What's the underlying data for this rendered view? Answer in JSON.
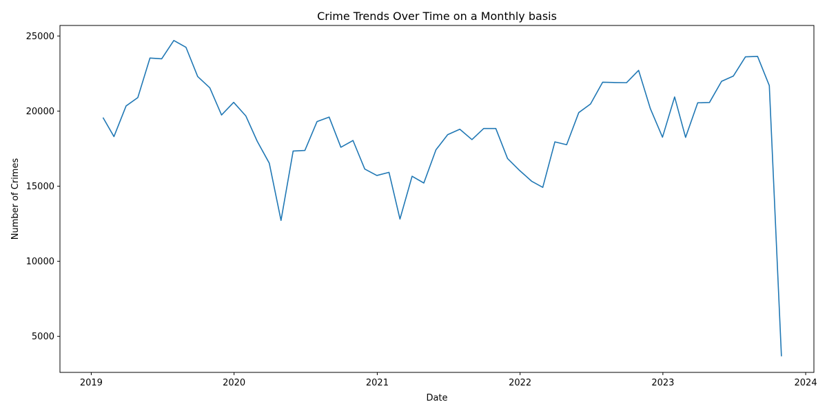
{
  "chart_data": {
    "type": "line",
    "title": "Crime Trends Over Time  on a Monthly basis",
    "xlabel": "Date",
    "ylabel": "Number of Crimes",
    "xlim": [
      "2018-10-13",
      "2024-01-22"
    ],
    "ylim": [
      2600,
      25700
    ],
    "x_ticks": [
      "2019",
      "2020",
      "2021",
      "2022",
      "2023",
      "2024"
    ],
    "y_ticks": [
      5000,
      10000,
      15000,
      20000,
      25000
    ],
    "grid": false,
    "legend": "none",
    "colors": {
      "line": "#1f77b4"
    },
    "series": [
      {
        "x": [
          "2019-01-31",
          "2019-02-28",
          "2019-03-31",
          "2019-04-30",
          "2019-05-31",
          "2019-06-30",
          "2019-07-31",
          "2019-08-31",
          "2019-09-30",
          "2019-10-31",
          "2019-11-30",
          "2019-12-31",
          "2020-01-31",
          "2020-02-29",
          "2020-03-31",
          "2020-04-30",
          "2020-05-31",
          "2020-06-30",
          "2020-07-31",
          "2020-08-31",
          "2020-09-30",
          "2020-10-31",
          "2020-11-30",
          "2020-12-31",
          "2021-01-31",
          "2021-02-28",
          "2021-03-31",
          "2021-04-30",
          "2021-05-31",
          "2021-06-30",
          "2021-07-31",
          "2021-08-31",
          "2021-09-30",
          "2021-10-31",
          "2021-11-30",
          "2021-12-31",
          "2022-01-31",
          "2022-02-28",
          "2022-03-31",
          "2022-04-30",
          "2022-05-31",
          "2022-06-30",
          "2022-07-31",
          "2022-08-31",
          "2022-09-30",
          "2022-10-31",
          "2022-11-30",
          "2022-12-31",
          "2023-01-31",
          "2023-02-28",
          "2023-03-31",
          "2023-04-30",
          "2023-05-31",
          "2023-06-30",
          "2023-07-31",
          "2023-08-31",
          "2023-09-30",
          "2023-10-31"
        ],
        "y": [
          19570,
          18300,
          20340,
          20900,
          23530,
          23480,
          24700,
          24250,
          22300,
          21550,
          19740,
          20580,
          19680,
          18000,
          16530,
          12720,
          17340,
          17380,
          19300,
          19600,
          17590,
          18040,
          16140,
          15710,
          15920,
          12810,
          15660,
          15210,
          17420,
          18430,
          18790,
          18100,
          18840,
          18840,
          16840,
          16040,
          15320,
          14920,
          17950,
          17760,
          19900,
          20470,
          21920,
          21900,
          21890,
          22710,
          20160,
          18260,
          20940,
          18250,
          20550,
          20570,
          21980,
          22330,
          23610,
          23640,
          21700,
          3670
        ]
      }
    ]
  }
}
